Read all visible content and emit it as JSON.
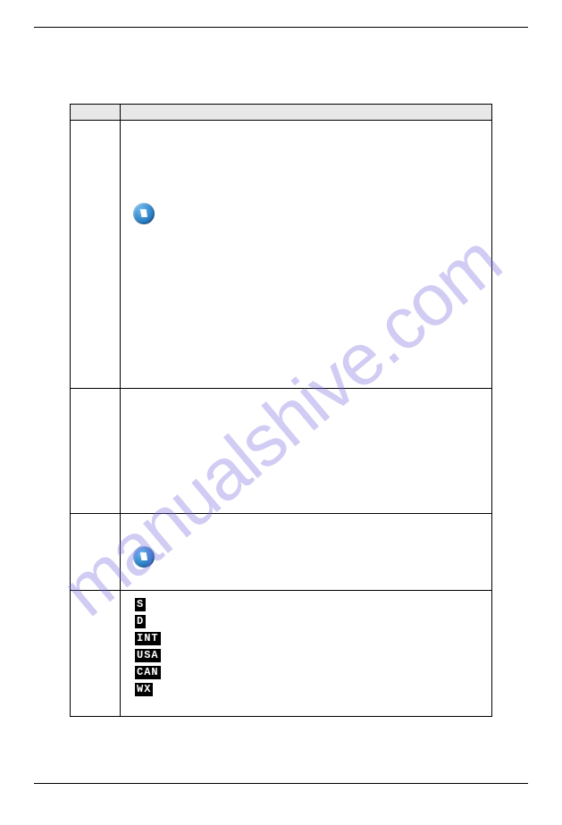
{
  "watermark": "manualshive.com",
  "badges": [
    "S",
    "D",
    "INT",
    "USA",
    "CAN",
    "WX"
  ]
}
